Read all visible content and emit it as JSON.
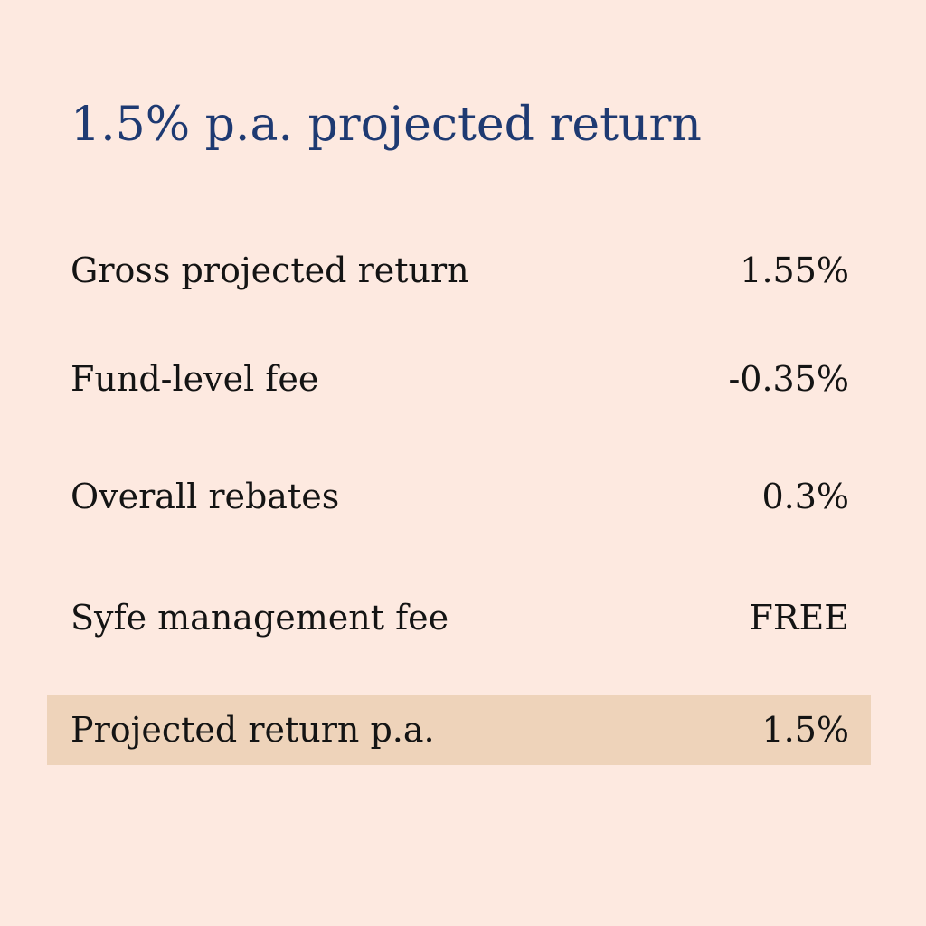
{
  "title": "1.5% p.a. projected return",
  "rows": [
    {
      "label": "Gross projected return",
      "value": "1.55%"
    },
    {
      "label": "Fund-level fee",
      "value": "-0.35%"
    },
    {
      "label": "Overall rebates",
      "value": "0.3%"
    },
    {
      "label": "Syfe management fee",
      "value": "FREE"
    },
    {
      "label": "Projected return p.a.",
      "value": "1.5%"
    }
  ],
  "colors": {
    "background": "#fde9e0",
    "title": "#1e3a72",
    "highlight": "#eed3ba",
    "text": "#141414"
  }
}
